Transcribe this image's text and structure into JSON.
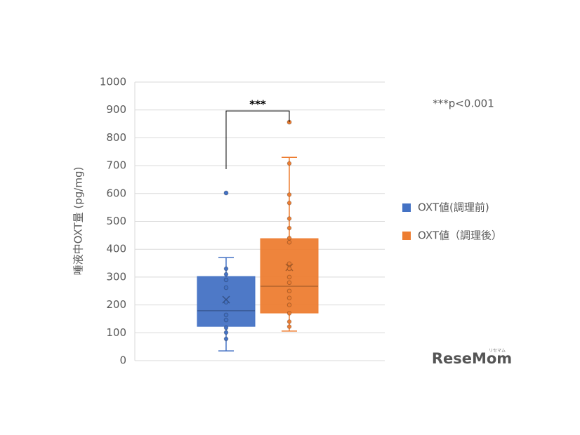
{
  "chart_data": {
    "type": "box",
    "ylabel": "唾液中OXT量 (pg/mg)",
    "ylim": [
      0,
      1000
    ],
    "yticks": [
      0,
      100,
      200,
      300,
      400,
      500,
      600,
      700,
      800,
      900,
      1000
    ],
    "grid": true,
    "legend": "right",
    "annotations": [
      "***",
      "***p<0.001"
    ],
    "logo": "ReseMom",
    "logo_sub": "リセマム",
    "series": [
      {
        "name": "OXT値(調理前)",
        "color": "#4472c4",
        "min": 35,
        "q1": 123,
        "median": 179,
        "q3": 302,
        "max": 370,
        "mean": 219,
        "points": [
          78,
          101,
          118,
          146,
          164,
          210,
          262,
          290,
          310,
          330
        ],
        "outliers": [
          602
        ]
      },
      {
        "name": "OXT値（調理後）",
        "color": "#ed7d31",
        "min": 106,
        "q1": 171,
        "median": 267,
        "q3": 438,
        "max": 730,
        "mean": 335,
        "points": [
          122,
          140,
          170,
          200,
          225,
          250,
          280,
          300,
          330,
          348,
          425,
          440,
          476,
          510,
          566,
          596,
          708
        ],
        "outliers": [
          856
        ]
      }
    ]
  }
}
